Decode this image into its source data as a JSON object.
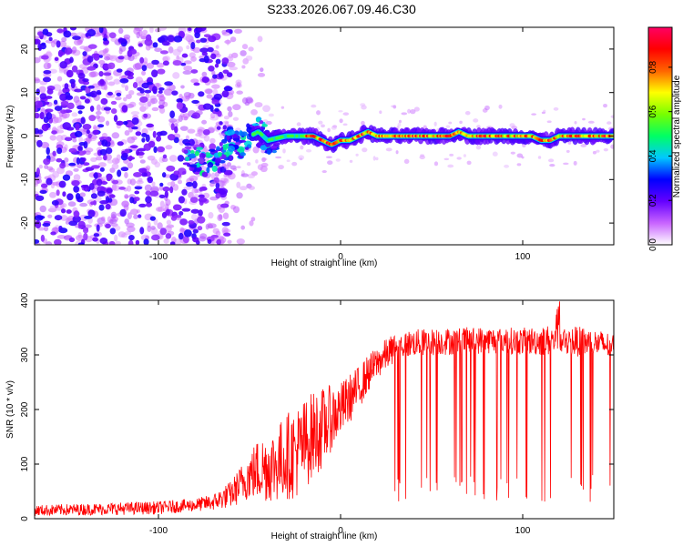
{
  "title": "S233.2026.067.09.46.C30",
  "chart_data": [
    {
      "type": "heatmap",
      "xlabel": "Height of straight line (km)",
      "ylabel": "Frequency (Hz)",
      "xlim": [
        -168,
        150
      ],
      "ylim": [
        -25,
        25
      ],
      "x_ticks": [
        -100,
        0,
        100
      ],
      "x_tick_labels": [
        "-100",
        "0",
        "100"
      ],
      "y_ticks": [
        -20,
        -10,
        0,
        10,
        20
      ],
      "y_tick_labels": [
        "-20",
        "-10",
        "0",
        "10",
        "20"
      ],
      "colorbar": {
        "label": "Normalized spectral amplitude",
        "range": [
          0,
          0.98
        ],
        "ticks": [
          0.0,
          0.2,
          0.4,
          0.6,
          0.8
        ],
        "tick_labels": [
          "0.0",
          "0.2",
          "0.4",
          "0.6",
          "0.8"
        ],
        "colors": [
          "#ffffff",
          "#c864ff",
          "#6400ff",
          "#0000ff",
          "#00c8ff",
          "#00ff64",
          "#78ff00",
          "#ffff00",
          "#ff6400",
          "#ff0000",
          "#ff0064"
        ]
      },
      "noise_region_km": [
        -168,
        -70
      ],
      "transition_region_km": [
        -70,
        -40
      ],
      "ridge": {
        "x": [
          -85,
          -80,
          -75,
          -70,
          -65,
          -60,
          -55,
          -50,
          -45,
          -40,
          -30,
          -20,
          -15,
          -10,
          -5,
          0,
          5,
          10,
          15,
          20,
          30,
          40,
          50,
          60,
          65,
          70,
          80,
          90,
          100,
          105,
          110,
          115,
          120,
          130,
          140,
          150
        ],
        "y": [
          -4,
          -5,
          -6,
          -5,
          -3,
          -1,
          -2,
          0,
          1,
          -1,
          0,
          0,
          0,
          -1,
          -2,
          -1,
          -1,
          0,
          1,
          0,
          0,
          0,
          0,
          0,
          1,
          0,
          0,
          0,
          0,
          0,
          -1,
          -1,
          0,
          0,
          0,
          0
        ]
      }
    },
    {
      "type": "line",
      "xlabel": "Height of straight line (km)",
      "ylabel": "SNR (10 * v/v)",
      "xlim": [
        -168,
        150
      ],
      "ylim": [
        0,
        400
      ],
      "x_ticks": [
        -100,
        0,
        100
      ],
      "x_tick_labels": [
        "-100",
        "0",
        "100"
      ],
      "y_ticks": [
        0,
        100,
        200,
        300,
        400
      ],
      "y_tick_labels": [
        "0",
        "100",
        "200",
        "300",
        "400"
      ],
      "color": "#ff0000",
      "envelope": {
        "x": [
          -168,
          -100,
          -80,
          -70,
          -60,
          -50,
          -45,
          -40,
          -35,
          -30,
          -25,
          -20,
          -15,
          -10,
          -5,
          0,
          5,
          10,
          15,
          20,
          25,
          30,
          40,
          60,
          80,
          100,
          120,
          140,
          150
        ],
        "mean": [
          15,
          20,
          25,
          30,
          45,
          80,
          90,
          95,
          100,
          115,
          120,
          135,
          155,
          165,
          185,
          200,
          220,
          240,
          265,
          285,
          300,
          315,
          322,
          325,
          327,
          325,
          327,
          322,
          315
        ],
        "amplitude": [
          10,
          12,
          12,
          15,
          25,
          45,
          60,
          65,
          70,
          80,
          85,
          85,
          80,
          75,
          60,
          50,
          45,
          40,
          35,
          30,
          30,
          25,
          25,
          25,
          25,
          25,
          30,
          25,
          25
        ]
      },
      "dropout_region_km": [
        28,
        148
      ],
      "dropout_min": 30
    }
  ]
}
